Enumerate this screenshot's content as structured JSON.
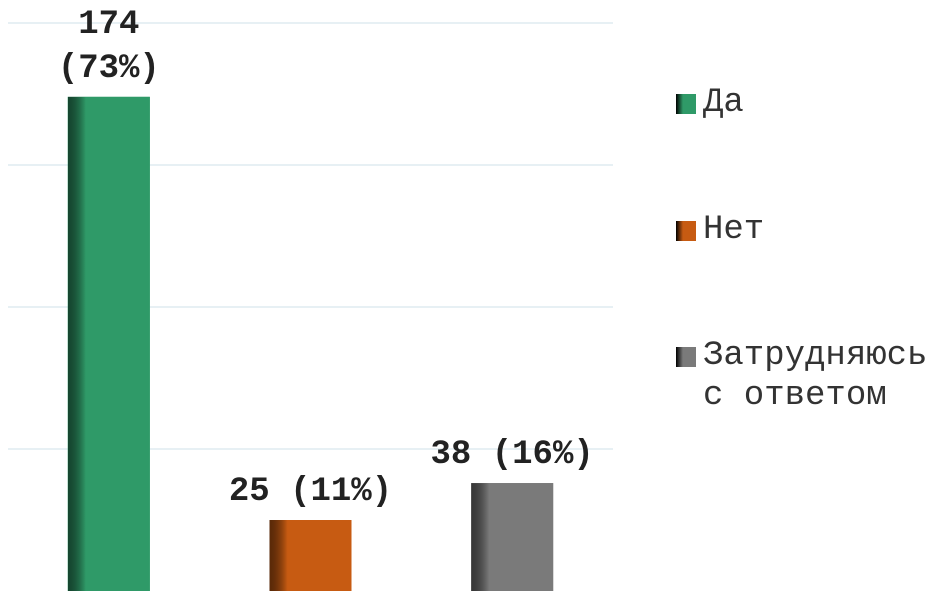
{
  "chart_data": {
    "type": "bar",
    "categories": [
      "Да",
      "Нет",
      "Затрудняюсь с ответом"
    ],
    "values": [
      174,
      25,
      38
    ],
    "value_labels": [
      "174 (73%)",
      "25 (11%)",
      "38 (16%)"
    ],
    "colors": [
      "#2f9a68",
      "#c75b12",
      "#7a7a7a"
    ],
    "ylim": [
      0,
      200
    ],
    "yticks": [
      50,
      100,
      150,
      200
    ],
    "grid": true,
    "legend": "right"
  }
}
